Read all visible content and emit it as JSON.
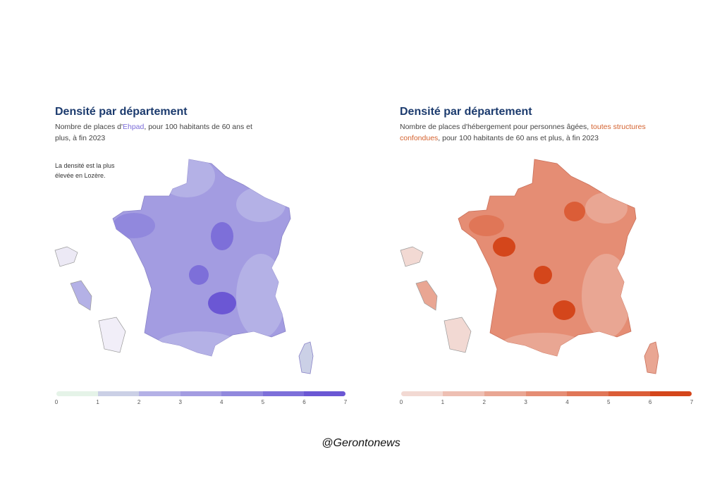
{
  "left": {
    "title": "Densité par département",
    "subtitle_pre": "Nombre de places d'",
    "subtitle_highlight": "Ehpad",
    "subtitle_post": ", pour 100 habitants de 60 ans et plus, à fin 2023",
    "highlight_color": "#7b6cd8",
    "note_line1": "La densité est la plus",
    "note_line2": "élevée en Lozère.",
    "legend": {
      "ticks": [
        "0",
        "1",
        "2",
        "3",
        "4",
        "5",
        "6",
        "7"
      ],
      "colors": [
        "#e5f3e8",
        "#cbd0e6",
        "#b4b1e6",
        "#a39ce1",
        "#9188dd",
        "#7d6fd9",
        "#6b57d4"
      ]
    }
  },
  "right": {
    "title": "Densité par département",
    "subtitle_pre": "Nombre de places d'hébergement pour personnes âgées, ",
    "subtitle_highlight": "toutes structures confondues",
    "subtitle_post": ", pour 100 habitants de 60 ans et plus, à fin 2023",
    "highlight_color": "#d4622f",
    "legend": {
      "ticks": [
        "0",
        "1",
        "2",
        "3",
        "4",
        "5",
        "6",
        "7"
      ],
      "colors": [
        "#f2d9d3",
        "#eebfb3",
        "#e9a693",
        "#e58d74",
        "#e07657",
        "#db5d37",
        "#d4461b"
      ]
    }
  },
  "credit": "@Gerontonews"
}
